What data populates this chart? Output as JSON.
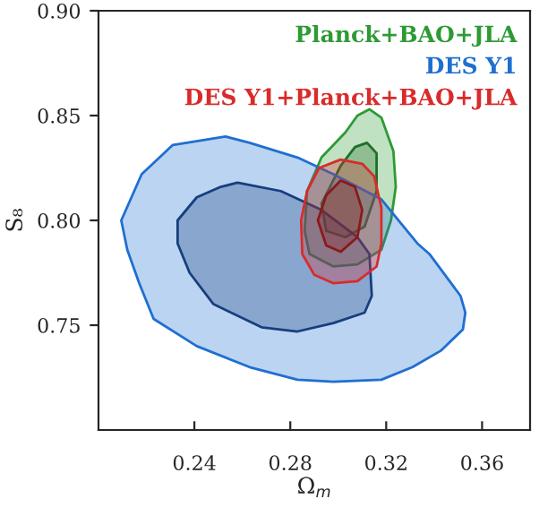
{
  "chart_data": {
    "type": "area",
    "xlabel": "Ω$_{m}$",
    "ylabel": "S₈",
    "xlim": [
      0.2,
      0.38
    ],
    "ylim": [
      0.7,
      0.9
    ],
    "xticks": [
      0.24,
      0.28,
      0.32,
      0.36
    ],
    "yticks": [
      0.75,
      {
        "value": 0.8,
        "label": "0.80"
      },
      0.85,
      {
        "value": 0.9,
        "label": "0.90"
      }
    ],
    "grid": false,
    "legend": "top right",
    "series": [
      {
        "name": "Planck+BAO+JLA",
        "color": "#2e9a35",
        "x": [
          0.313,
          0.318,
          0.323,
          0.324,
          0.322,
          0.318,
          0.308,
          0.298,
          0.288,
          0.286,
          0.287,
          0.293,
          0.303,
          0.308
        ],
        "values": [
          0.853,
          0.849,
          0.833,
          0.816,
          0.8,
          0.786,
          0.779,
          0.778,
          0.784,
          0.795,
          0.814,
          0.83,
          0.842,
          0.85
        ]
      },
      {
        "color": "#1f6e28",
        "x": [
          0.312,
          0.316,
          0.316,
          0.311,
          0.303,
          0.295,
          0.293,
          0.301,
          0.307
        ],
        "values": [
          0.837,
          0.832,
          0.814,
          0.797,
          0.792,
          0.795,
          0.808,
          0.826,
          0.835
        ]
      },
      {
        "name": "DES Y1",
        "color": "#1f6fd0",
        "x": [
          0.2095,
          0.218,
          0.231,
          0.253,
          0.263,
          0.283,
          0.298,
          0.318,
          0.333,
          0.338,
          0.351,
          0.353,
          0.352,
          0.343,
          0.331,
          0.318,
          0.298,
          0.283,
          0.263,
          0.241,
          0.223,
          0.217,
          0.212
        ],
        "values": [
          0.8,
          0.822,
          0.836,
          0.84,
          0.837,
          0.83,
          0.822,
          0.81,
          0.789,
          0.784,
          0.764,
          0.756,
          0.748,
          0.738,
          0.73,
          0.724,
          0.723,
          0.724,
          0.73,
          0.74,
          0.753,
          0.77,
          0.786
        ]
      },
      {
        "color": "#173e7e",
        "x": [
          0.233,
          0.241,
          0.251,
          0.258,
          0.276,
          0.293,
          0.308,
          0.313,
          0.314,
          0.311,
          0.298,
          0.283,
          0.268,
          0.248,
          0.238,
          0.233
        ],
        "values": [
          0.8,
          0.811,
          0.816,
          0.818,
          0.814,
          0.805,
          0.792,
          0.784,
          0.764,
          0.756,
          0.751,
          0.747,
          0.749,
          0.76,
          0.775,
          0.789
        ]
      },
      {
        "name": "DES Y1+Planck+BAO+JLA",
        "color": "#d92b2b",
        "x": [
          0.301,
          0.31,
          0.315,
          0.318,
          0.318,
          0.316,
          0.308,
          0.298,
          0.29,
          0.285,
          0.2845,
          0.287,
          0.292
        ],
        "values": [
          0.829,
          0.827,
          0.821,
          0.806,
          0.789,
          0.778,
          0.771,
          0.77,
          0.774,
          0.784,
          0.8,
          0.814,
          0.825
        ]
      },
      {
        "color": "#8a1a1a",
        "x": [
          0.301,
          0.307,
          0.31,
          0.308,
          0.301,
          0.295,
          0.2915,
          0.295
        ],
        "values": [
          0.819,
          0.816,
          0.805,
          0.792,
          0.785,
          0.788,
          0.8,
          0.812
        ]
      }
    ]
  }
}
